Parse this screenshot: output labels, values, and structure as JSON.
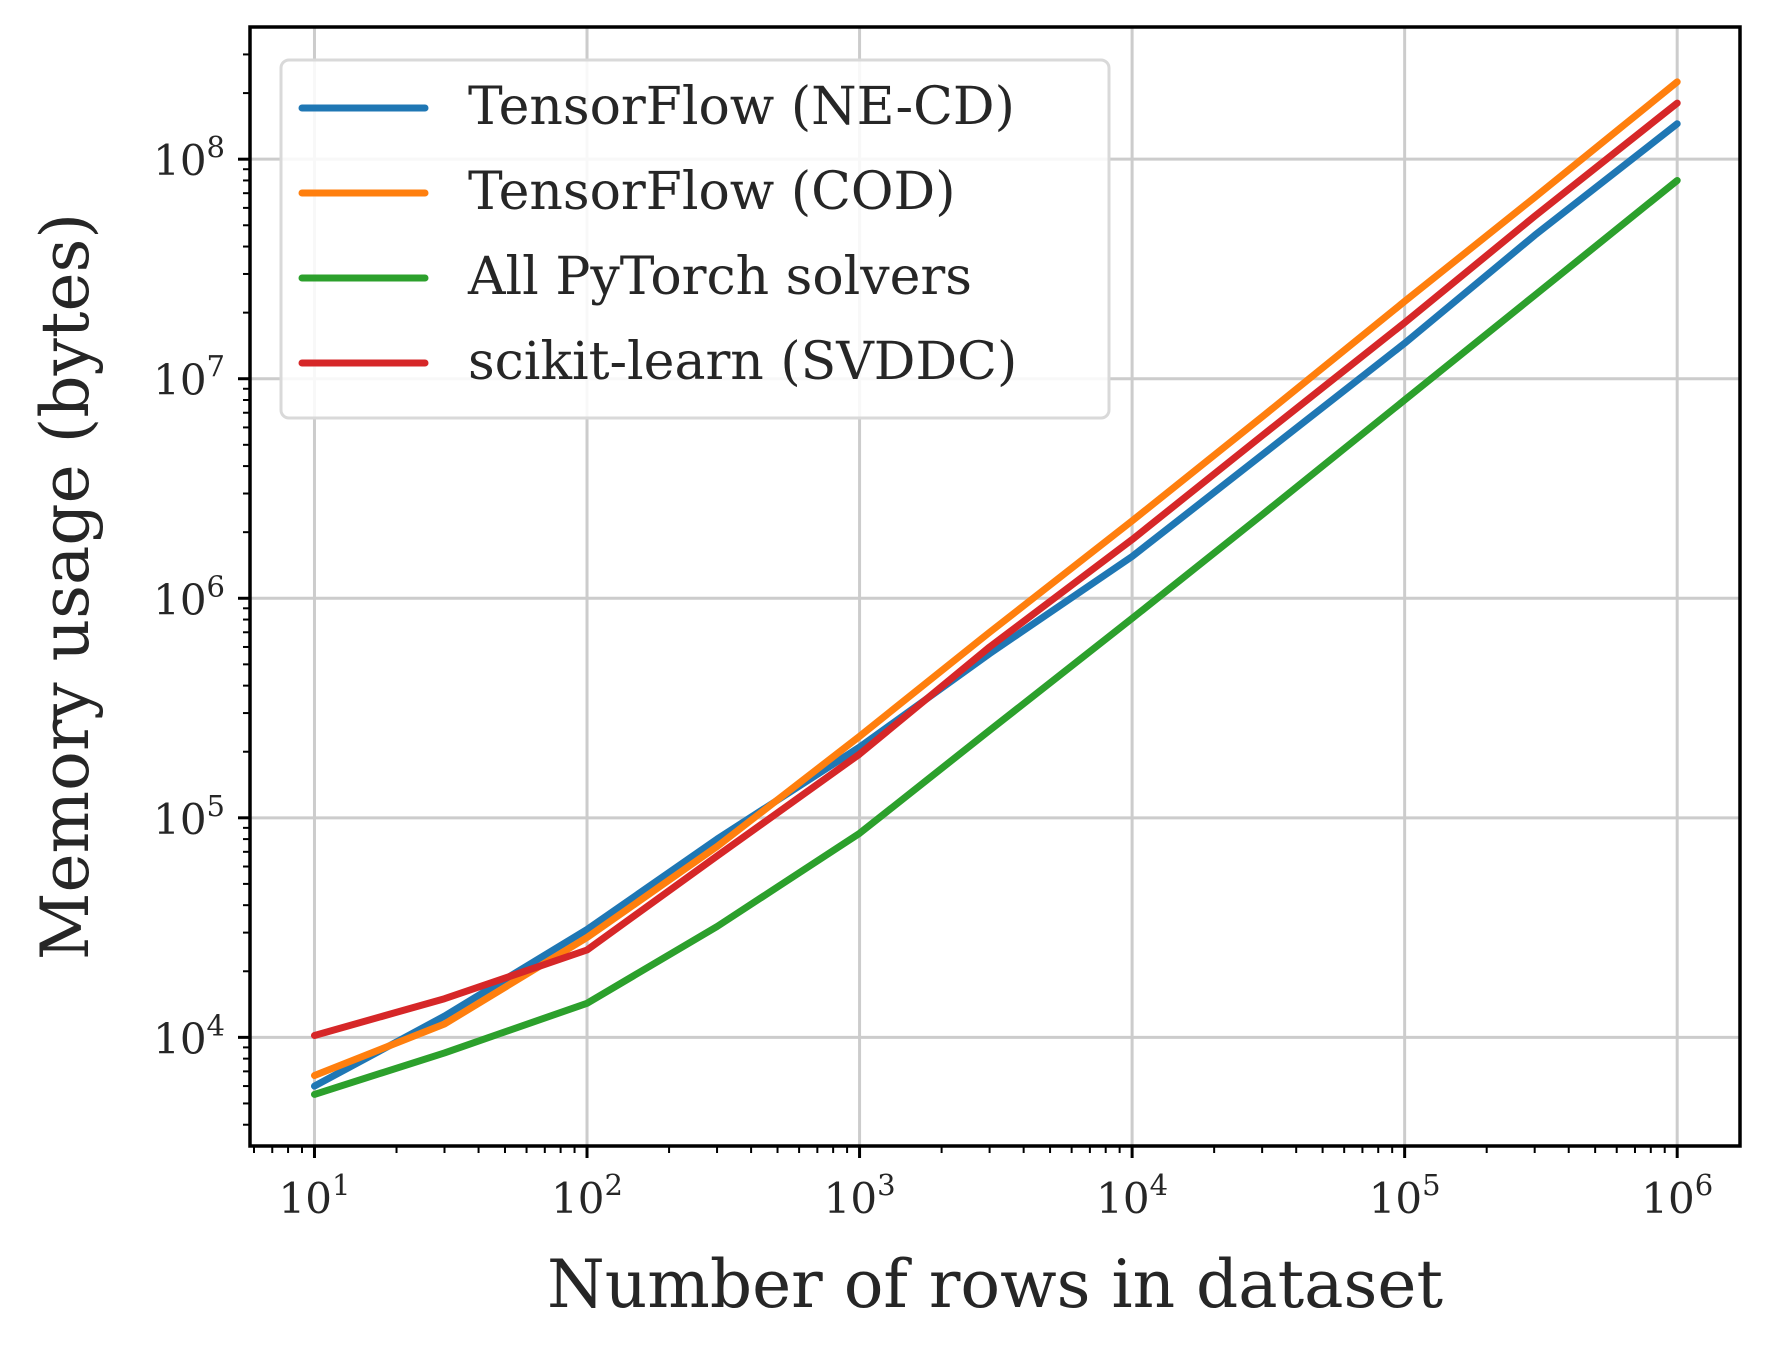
{
  "chart_data": {
    "type": "line",
    "xlabel": "Number of rows in dataset",
    "ylabel": "Memory usage (bytes)",
    "x_scale": "log",
    "y_scale": "log",
    "xlim": [
      5.8,
      1700000
    ],
    "ylim": [
      3200,
      400000000
    ],
    "x_ticks": [
      {
        "value": 10,
        "base": "10",
        "exp": "1"
      },
      {
        "value": 100,
        "base": "10",
        "exp": "2"
      },
      {
        "value": 1000,
        "base": "10",
        "exp": "3"
      },
      {
        "value": 10000,
        "base": "10",
        "exp": "4"
      },
      {
        "value": 100000,
        "base": "10",
        "exp": "5"
      },
      {
        "value": 1000000,
        "base": "10",
        "exp": "6"
      }
    ],
    "y_ticks": [
      {
        "value": 10000,
        "base": "10",
        "exp": "4"
      },
      {
        "value": 100000,
        "base": "10",
        "exp": "5"
      },
      {
        "value": 1000000,
        "base": "10",
        "exp": "6"
      },
      {
        "value": 10000000,
        "base": "10",
        "exp": "7"
      },
      {
        "value": 100000000,
        "base": "10",
        "exp": "8"
      }
    ],
    "grid": true,
    "legend_position": "top-left",
    "series": [
      {
        "name": "TensorFlow (NE-CD)",
        "color": "#1f77b4",
        "x": [
          10,
          30,
          100,
          300,
          1000,
          3000,
          10000,
          30000,
          100000,
          300000,
          1000000
        ],
        "y": [
          6000,
          12500,
          31000,
          80000,
          210000,
          560000,
          1550000,
          4500000,
          14500000,
          45000000,
          145000000
        ]
      },
      {
        "name": "TensorFlow (COD)",
        "color": "#ff7f0e",
        "x": [
          10,
          30,
          100,
          300,
          1000,
          3000,
          10000,
          30000,
          100000,
          300000,
          1000000
        ],
        "y": [
          6700,
          11500,
          28500,
          74000,
          235000,
          700000,
          2250000,
          6700000,
          22500000,
          67000000,
          225000000
        ]
      },
      {
        "name": "All PyTorch solvers",
        "color": "#2ca02c",
        "x": [
          10,
          30,
          100,
          300,
          1000,
          3000,
          10000,
          30000,
          100000,
          300000,
          1000000
        ],
        "y": [
          5500,
          8500,
          14300,
          32000,
          85000,
          250000,
          810000,
          2400000,
          8000000,
          24000000,
          80000000
        ]
      },
      {
        "name": "scikit-learn (SVDDC)",
        "color": "#d62728",
        "x": [
          10,
          30,
          100,
          300,
          1000,
          3000,
          10000,
          30000,
          100000,
          300000,
          1000000
        ],
        "y": [
          10200,
          15000,
          25000,
          67000,
          195000,
          600000,
          1850000,
          5500000,
          18000000,
          55000000,
          180000000
        ]
      }
    ]
  }
}
